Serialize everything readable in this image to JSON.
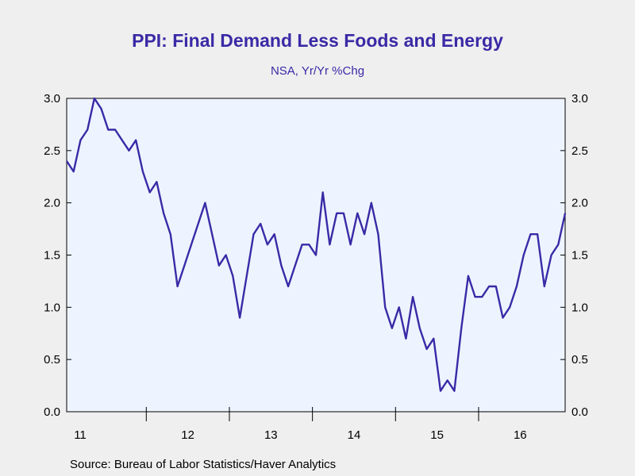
{
  "chart_data": {
    "type": "line",
    "title": "PPI: Final Demand Less Foods and Energy",
    "subtitle": "NSA, Yr/Yr %Chg",
    "source": "Source:  Bureau of Labor Statistics/Haver Analytics",
    "xlabel": "",
    "ylabel": "",
    "ylim": [
      0.0,
      3.0
    ],
    "y_ticks": [
      "0.0",
      "0.5",
      "1.0",
      "1.5",
      "2.0",
      "2.5",
      "3.0"
    ],
    "x_tick_labels": [
      "11",
      "12",
      "13",
      "14",
      "15",
      "16"
    ],
    "x_start": "2011-01",
    "grid": false,
    "line_color": "#3a2aa6",
    "plot_background": "#eef4ff",
    "series": [
      {
        "values": [
          2.4,
          2.3,
          2.6,
          2.7,
          3.0,
          2.9,
          2.7,
          2.7,
          2.6,
          2.5,
          2.6,
          2.3,
          2.1,
          2.2,
          1.9,
          1.7,
          1.2,
          1.4,
          1.6,
          1.8,
          2.0,
          1.7,
          1.4,
          1.5,
          1.3,
          0.9,
          1.3,
          1.7,
          1.8,
          1.6,
          1.7,
          1.4,
          1.2,
          1.4,
          1.6,
          1.6,
          1.5,
          2.1,
          1.6,
          1.9,
          1.9,
          1.6,
          1.9,
          1.7,
          2.0,
          1.7,
          1.0,
          0.8,
          1.0,
          0.7,
          1.1,
          0.8,
          0.6,
          0.7,
          0.2,
          0.3,
          0.2,
          0.8,
          1.3,
          1.1,
          1.1,
          1.2,
          1.2,
          0.9,
          1.0,
          1.2,
          1.5,
          1.7,
          1.7,
          1.2,
          1.5,
          1.6,
          1.9
        ]
      }
    ]
  }
}
